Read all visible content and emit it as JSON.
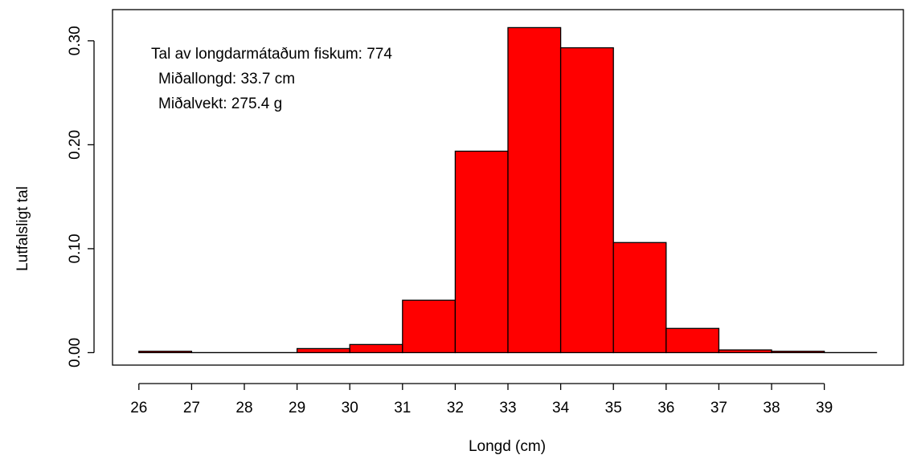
{
  "chart_data": {
    "type": "bar",
    "bar_color": "#ff0000",
    "xlabel": "Longd (cm)",
    "ylabel": "Lutfalsligt tal",
    "xlim": [
      25.5,
      40.5
    ],
    "ylim": [
      -0.012,
      0.33
    ],
    "x_ticks": [
      26,
      27,
      28,
      29,
      30,
      31,
      32,
      33,
      34,
      35,
      36,
      37,
      38,
      39
    ],
    "y_ticks": [
      0.0,
      0.1,
      0.2,
      0.3
    ],
    "y_tick_labels": [
      "0.00",
      "0.10",
      "0.20",
      "0.30"
    ],
    "bins": [
      {
        "x0": 26,
        "x1": 27,
        "value": 0.0013
      },
      {
        "x0": 27,
        "x1": 28,
        "value": 0.0
      },
      {
        "x0": 28,
        "x1": 29,
        "value": 0.0
      },
      {
        "x0": 29,
        "x1": 30,
        "value": 0.0039
      },
      {
        "x0": 30,
        "x1": 31,
        "value": 0.0078
      },
      {
        "x0": 31,
        "x1": 32,
        "value": 0.0504
      },
      {
        "x0": 32,
        "x1": 33,
        "value": 0.1938
      },
      {
        "x0": 33,
        "x1": 34,
        "value": 0.3127
      },
      {
        "x0": 34,
        "x1": 35,
        "value": 0.2933
      },
      {
        "x0": 35,
        "x1": 36,
        "value": 0.1059
      },
      {
        "x0": 36,
        "x1": 37,
        "value": 0.0233
      },
      {
        "x0": 37,
        "x1": 38,
        "value": 0.0026
      },
      {
        "x0": 38,
        "x1": 39,
        "value": 0.0013
      },
      {
        "x0": 39,
        "x1": 40,
        "value": 0.0
      }
    ],
    "annotations": [
      "Tal av longdarmátaðum fiskum: 774",
      "Miðallongd: 33.7 cm",
      "Miðalvekt: 275.4 g"
    ]
  }
}
